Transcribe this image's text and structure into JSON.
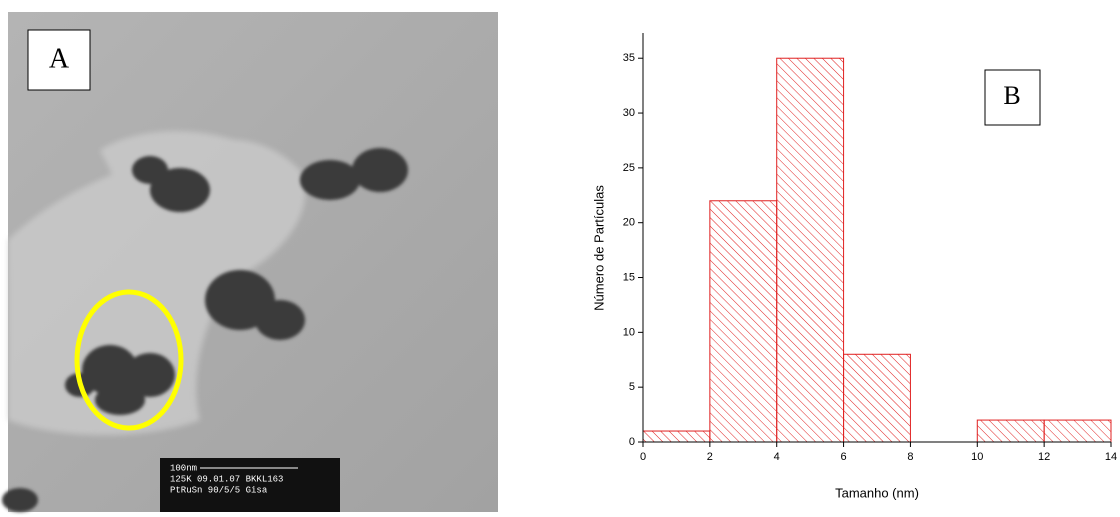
{
  "image": {
    "label": "A",
    "scale_bar": [
      "100nm",
      "125K  09.01.07  BKKL163",
      "PtRuSn 90/5/5  Gisa"
    ]
  },
  "chart_data": {
    "type": "histogram",
    "panel_label": "B",
    "xlabel": "Tamanho (nm)",
    "ylabel": "Número de Partículas",
    "bins": [
      0,
      2,
      4,
      6,
      8,
      10,
      12,
      14
    ],
    "values": [
      1,
      22,
      35,
      8,
      0,
      2,
      2
    ],
    "color": "#e02020",
    "xlim": [
      0,
      14
    ],
    "ylim": [
      0,
      37.3
    ],
    "xticks": [
      0,
      2,
      4,
      6,
      8,
      10,
      12,
      14
    ],
    "yticks": [
      0,
      5,
      10,
      15,
      20,
      25,
      30,
      35
    ]
  }
}
